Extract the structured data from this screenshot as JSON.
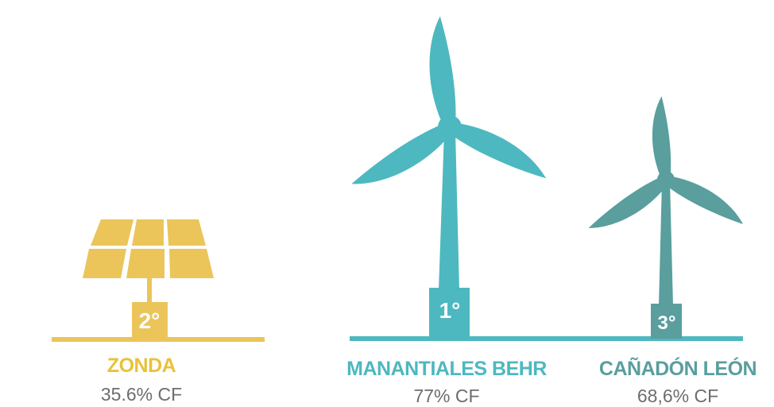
{
  "items": [
    {
      "name": "ZONDA",
      "rank": "2°",
      "capacity_factor": "35.6% CF"
    },
    {
      "name": "MANANTIALES BEHR",
      "rank": "1°",
      "capacity_factor": "77% CF"
    },
    {
      "name": "CAÑADÓN LEÓN",
      "rank": "3°",
      "capacity_factor": "68,6% CF"
    }
  ]
}
